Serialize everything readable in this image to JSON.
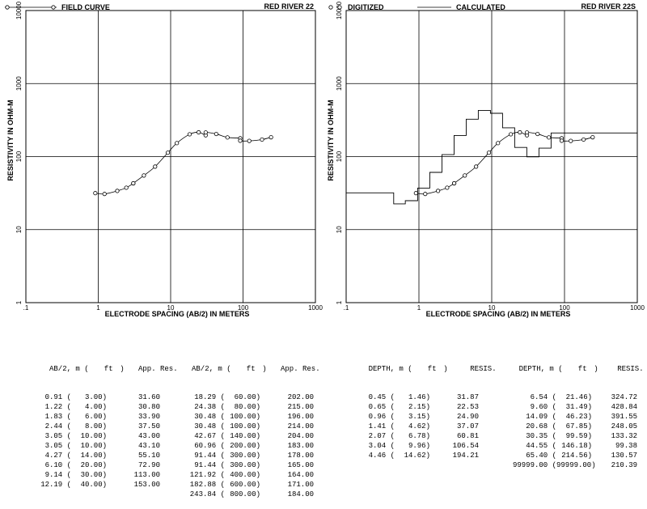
{
  "chart_data": [
    {
      "type": "scatter",
      "legend": "FIELD CURVE",
      "site": "RED RIVER 22",
      "xlabel": "ELECTRODE SPACING (AB/2) IN METERS",
      "ylabel": "RESISTIVITY IN OHM-M",
      "xscale": "log",
      "yscale": "log",
      "xlim": [
        0.1,
        1000
      ],
      "ylim": [
        1,
        10000
      ],
      "xticks": [
        ".1",
        "1",
        "10",
        "100",
        "1000"
      ],
      "yticks": [
        "1",
        "10",
        "100",
        "1000",
        "10000"
      ],
      "grid": true,
      "series": [
        {
          "name": "FIELD CURVE",
          "x": [
            0.91,
            1.22,
            1.83,
            2.44,
            3.05,
            3.05,
            4.27,
            6.1,
            9.14,
            12.19,
            18.29,
            24.38,
            30.48,
            30.48,
            42.67,
            60.96,
            91.44,
            91.44,
            121.92,
            182.88,
            243.84
          ],
          "y": [
            31.6,
            30.8,
            33.9,
            37.5,
            43.0,
            43.1,
            55.1,
            72.9,
            113.0,
            153.0,
            202.0,
            215.0,
            196.0,
            214.0,
            204.0,
            183.0,
            178.0,
            165.0,
            164.0,
            171.0,
            184.0
          ]
        }
      ]
    },
    {
      "type": "line",
      "legend_digitized": "DIGITIZED",
      "legend_calculated": "CALCULATED",
      "site": "RED RIVER 22S",
      "xlabel": "ELECTRODE SPACING (AB/2) IN METERS",
      "ylabel": "RESISTIVITY IN OHM-M",
      "xscale": "log",
      "yscale": "log",
      "xlim": [
        0.1,
        1000
      ],
      "ylim": [
        1,
        10000
      ],
      "xticks": [
        ".1",
        "1",
        "10",
        "100",
        "1000"
      ],
      "yticks": [
        "1",
        "10",
        "100",
        "1000",
        "10000"
      ],
      "grid": true,
      "layers": {
        "depth": [
          0.45,
          0.65,
          0.96,
          1.41,
          2.07,
          3.04,
          4.46,
          6.54,
          9.6,
          14.09,
          20.68,
          30.35,
          44.55,
          65.4
        ],
        "resistivity": [
          31.87,
          22.53,
          24.9,
          37.07,
          60.81,
          106.54,
          194.21,
          324.72,
          428.84,
          391.55,
          248.05,
          133.32,
          99.38,
          130.57,
          210.39
        ]
      }
    }
  ],
  "table_left": {
    "headers": [
      "AB/2, m (",
      "ft",
      ")",
      "App. Res.",
      "AB/2, m (",
      "ft",
      ")",
      "App. Res."
    ],
    "rows": [
      [
        "0.91 (",
        "3.00)",
        "31.60",
        "18.29 (",
        "60.00)",
        "202.00"
      ],
      [
        "1.22 (",
        "4.00)",
        "30.80",
        "24.38 (",
        "80.00)",
        "215.00"
      ],
      [
        "1.83 (",
        "6.00)",
        "33.90",
        "30.48 (",
        "100.00)",
        "196.00"
      ],
      [
        "2.44 (",
        "8.00)",
        "37.50",
        "30.48 (",
        "100.00)",
        "214.00"
      ],
      [
        "3.05 (",
        "10.00)",
        "43.00",
        "42.67 (",
        "140.00)",
        "204.00"
      ],
      [
        "3.05 (",
        "10.00)",
        "43.10",
        "60.96 (",
        "200.00)",
        "183.00"
      ],
      [
        "4.27 (",
        "14.00)",
        "55.10",
        "91.44 (",
        "300.00)",
        "178.00"
      ],
      [
        "6.10 (",
        "20.00)",
        "72.90",
        "91.44 (",
        "300.00)",
        "165.00"
      ],
      [
        "9.14 (",
        "30.00)",
        "113.00",
        "121.92 (",
        "400.00)",
        "164.00"
      ],
      [
        "12.19 (",
        "40.00)",
        "153.00",
        "182.88 (",
        "600.00)",
        "171.00"
      ],
      [
        "",
        "",
        "",
        "243.84 (",
        "800.00)",
        "184.00"
      ]
    ]
  },
  "table_right": {
    "headers": [
      "DEPTH, m (",
      "ft",
      ")",
      "RESIS.",
      "DEPTH, m (",
      "ft",
      ")",
      "RESIS."
    ],
    "rows": [
      [
        "0.45 (",
        "1.46)",
        "31.87",
        "6.54 (",
        "21.46)",
        "324.72"
      ],
      [
        "0.65 (",
        "2.15)",
        "22.53",
        "9.60 (",
        "31.49)",
        "428.84"
      ],
      [
        "0.96 (",
        "3.15)",
        "24.90",
        "14.09 (",
        "46.23)",
        "391.55"
      ],
      [
        "1.41 (",
        "4.62)",
        "37.07",
        "20.68 (",
        "67.85)",
        "248.05"
      ],
      [
        "2.07 (",
        "6.78)",
        "60.81",
        "30.35 (",
        "99.59)",
        "133.32"
      ],
      [
        "3.04 (",
        "9.96)",
        "106.54",
        "44.55 (",
        "146.18)",
        "99.38"
      ],
      [
        "4.46 (",
        "14.62)",
        "194.21",
        "65.40 (",
        "214.56)",
        "130.57"
      ],
      [
        "",
        "",
        "",
        "99999.00 (",
        "99999.00)",
        "210.39"
      ]
    ]
  }
}
